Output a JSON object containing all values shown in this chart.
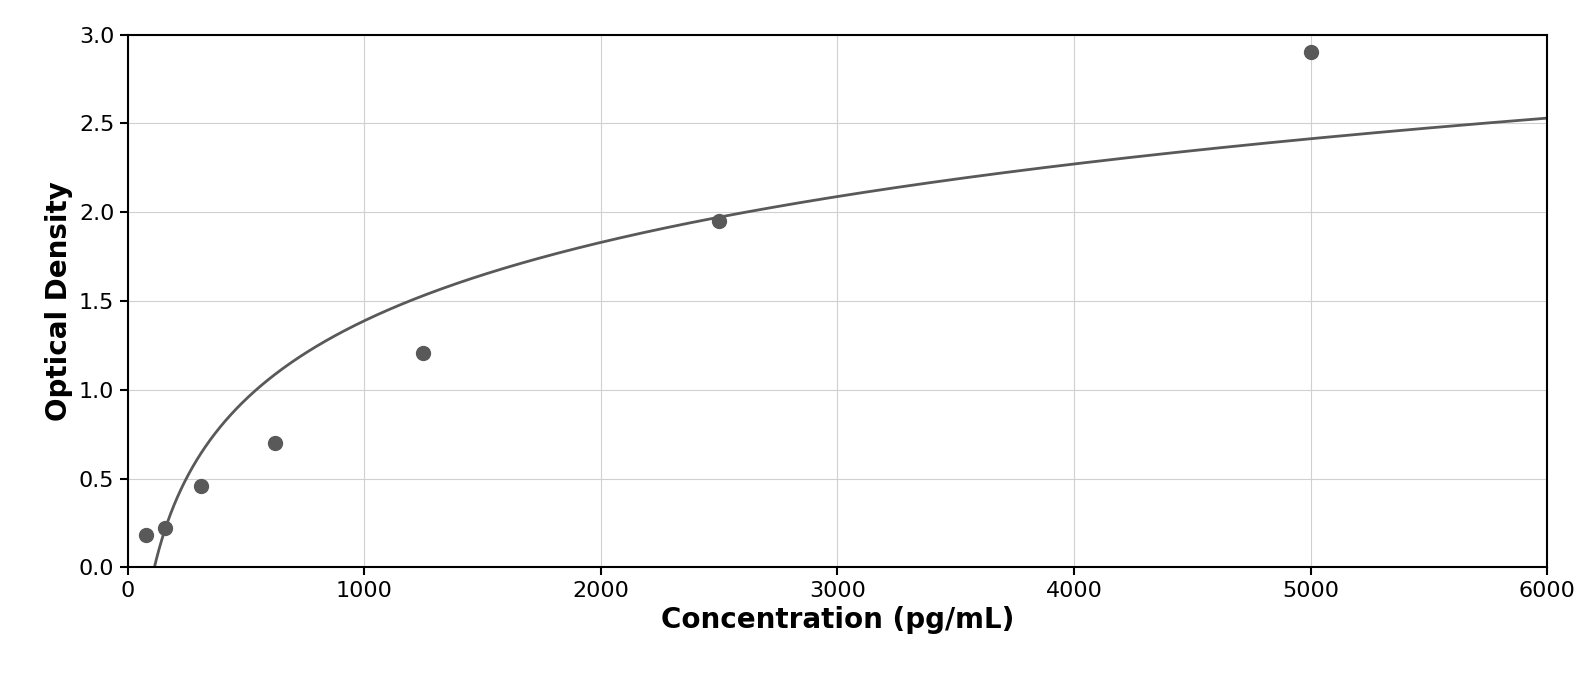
{
  "scatter_x": [
    78,
    156,
    312,
    625,
    1250,
    2500,
    5000
  ],
  "scatter_y": [
    0.18,
    0.22,
    0.46,
    0.7,
    1.21,
    1.95,
    2.9
  ],
  "scatter_color": "#595959",
  "scatter_size": 100,
  "line_color": "#595959",
  "line_width": 2.0,
  "xlabel": "Concentration (pg/mL)",
  "ylabel": "Optical Density",
  "xlim": [
    0,
    6000
  ],
  "ylim": [
    0,
    3.0
  ],
  "xticks": [
    0,
    1000,
    2000,
    3000,
    4000,
    5000,
    6000
  ],
  "yticks": [
    0,
    0.5,
    1.0,
    1.5,
    2.0,
    2.5,
    3.0
  ],
  "grid_color": "#d0d0d0",
  "background_color": "#ffffff",
  "border_color": "#000000",
  "xlabel_fontsize": 20,
  "ylabel_fontsize": 20,
  "tick_fontsize": 16,
  "figure_bg": "#ffffff"
}
